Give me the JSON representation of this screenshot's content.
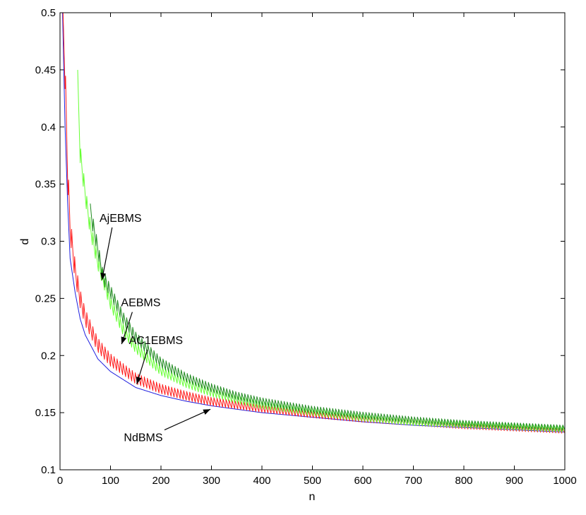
{
  "chart_data": {
    "type": "line",
    "xlabel": "n",
    "ylabel": "d",
    "xlim": [
      0,
      1000
    ],
    "ylim": [
      0.1,
      0.5
    ],
    "xticks": [
      0,
      100,
      200,
      300,
      400,
      500,
      600,
      700,
      800,
      900,
      1000
    ],
    "yticks": [
      0.1,
      0.15,
      0.2,
      0.25,
      0.3,
      0.35,
      0.4,
      0.45,
      0.5
    ],
    "grid": false,
    "series": [
      {
        "name": "NdBMS",
        "color": "#1f1fdf",
        "sawtooth": false,
        "x": [
          5,
          10,
          15,
          20,
          30,
          40,
          50,
          75,
          100,
          150,
          200,
          250,
          300,
          350,
          400,
          500,
          600,
          700,
          800,
          900,
          1000
        ],
        "y": [
          0.5,
          0.4,
          0.335,
          0.285,
          0.255,
          0.232,
          0.218,
          0.197,
          0.186,
          0.172,
          0.165,
          0.16,
          0.156,
          0.153,
          0.15,
          0.146,
          0.142,
          0.139,
          0.137,
          0.135,
          0.133
        ]
      },
      {
        "name": "AC1EBMS",
        "color": "#ff1a1a",
        "sawtooth": true,
        "x": [
          5,
          10,
          15,
          20,
          30,
          40,
          50,
          75,
          100,
          150,
          200,
          250,
          300,
          350,
          400,
          500,
          600,
          700,
          800,
          900,
          1000
        ],
        "y": [
          0.5,
          0.445,
          0.36,
          0.31,
          0.272,
          0.248,
          0.232,
          0.208,
          0.195,
          0.179,
          0.17,
          0.164,
          0.159,
          0.156,
          0.153,
          0.148,
          0.144,
          0.141,
          0.138,
          0.136,
          0.134
        ]
      },
      {
        "name": "AEBMS",
        "color": "#66ff33",
        "sawtooth": true,
        "x": [
          35,
          40,
          50,
          60,
          75,
          100,
          125,
          150,
          200,
          250,
          300,
          350,
          400,
          500,
          600,
          700,
          800,
          900,
          1000
        ],
        "y": [
          0.44,
          0.375,
          0.34,
          0.31,
          0.28,
          0.245,
          0.222,
          0.206,
          0.186,
          0.175,
          0.167,
          0.161,
          0.156,
          0.15,
          0.145,
          0.141,
          0.139,
          0.137,
          0.135
        ]
      },
      {
        "name": "AjEBMS",
        "color": "#1f8a1f",
        "sawtooth": true,
        "x": [
          60,
          75,
          85,
          100,
          125,
          150,
          200,
          250,
          300,
          350,
          400,
          500,
          600,
          700,
          800,
          900,
          1000
        ],
        "y": [
          0.325,
          0.292,
          0.268,
          0.255,
          0.232,
          0.215,
          0.193,
          0.18,
          0.171,
          0.164,
          0.159,
          0.152,
          0.147,
          0.143,
          0.14,
          0.138,
          0.136
        ]
      }
    ],
    "annotations": [
      {
        "text": "AjEBMS",
        "text_x": 120,
        "text_y": 0.317,
        "arrow_to_x": 83,
        "arrow_to_y": 0.266
      },
      {
        "text": "AEBMS",
        "text_x": 160,
        "text_y": 0.243,
        "arrow_to_x": 122,
        "arrow_to_y": 0.21
      },
      {
        "text": "AC1EBMS",
        "text_x": 190,
        "text_y": 0.21,
        "arrow_to_x": 152,
        "arrow_to_y": 0.175
      },
      {
        "text": "NdBMS",
        "text_x": 165,
        "text_y": 0.125,
        "arrow_to_x": 298,
        "arrow_to_y": 0.153
      }
    ]
  }
}
